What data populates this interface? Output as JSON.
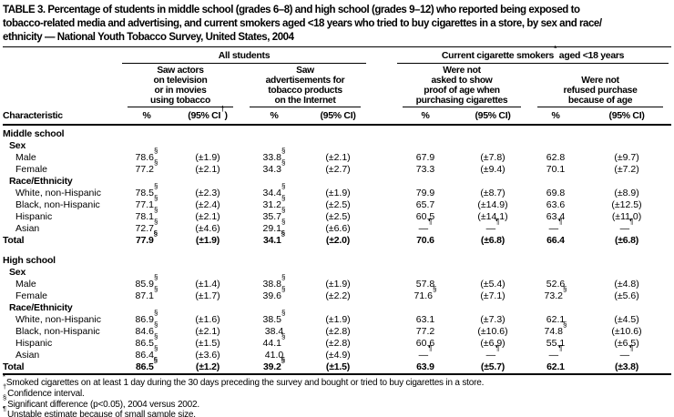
{
  "title_lines": [
    "TABLE 3. Percentage of students in middle school (grades 6–8) and high school (grades 9–12) who reported being exposed to",
    "tobacco-related media and advertising, and current smokers aged <18 years who tried to buy cigarettes in a store, by sex and race/",
    "ethnicity — National Youth Tobacco Survey, United States, 2004"
  ],
  "header": {
    "characteristic": "Characteristic",
    "spanners": [
      {
        "pre": "All students",
        "sup": "",
        "post": ""
      },
      {
        "pre": "Current cigarette smokers",
        "sup": "*",
        "post": " aged <18 years"
      }
    ],
    "subheads": [
      {
        "lines": [
          "Saw actors",
          "on television",
          "or in movies",
          "using tobacco"
        ]
      },
      {
        "lines": [
          "Saw",
          "advertisements for",
          "tobacco products",
          "on the Internet"
        ]
      },
      {
        "lines": [
          "Were not",
          "asked to show",
          "proof of age when",
          "purchasing cigarettes"
        ]
      },
      {
        "lines": [
          "Were not",
          "refused purchase",
          "because of age"
        ]
      }
    ],
    "cols": [
      {
        "pct": "%",
        "ci": "(95% CI",
        "sup": "†",
        "close": ")"
      },
      {
        "pct": "%",
        "ci": "(95% CI)"
      },
      {
        "pct": "%",
        "ci": "(95% CI)"
      },
      {
        "pct": "%",
        "ci": "(95% CI)"
      }
    ]
  },
  "body": {
    "sections": [
      {
        "name": "Middle school",
        "groups": [
          {
            "name": "Sex",
            "rows": [
              {
                "label": "Male",
                "cells": [
                  {
                    "v": "78.6",
                    "s": "§"
                  },
                  {
                    "v": "(±1.9)"
                  },
                  {
                    "v": "33.8",
                    "s": "§"
                  },
                  {
                    "v": "(±2.1)"
                  },
                  {
                    "v": "67.9"
                  },
                  {
                    "v": "(±7.8)"
                  },
                  {
                    "v": "62.8"
                  },
                  {
                    "v": "(±9.7)"
                  }
                ]
              },
              {
                "label": "Female",
                "cells": [
                  {
                    "v": "77.2",
                    "s": "§"
                  },
                  {
                    "v": "(±2.1)"
                  },
                  {
                    "v": "34.3",
                    "s": "§"
                  },
                  {
                    "v": "(±2.7)"
                  },
                  {
                    "v": "73.3"
                  },
                  {
                    "v": "(±9.4)"
                  },
                  {
                    "v": "70.1"
                  },
                  {
                    "v": "(±7.2)"
                  }
                ]
              }
            ]
          },
          {
            "name": "Race/Ethnicity",
            "rows": [
              {
                "label": "White, non-Hispanic",
                "cells": [
                  {
                    "v": "78.5",
                    "s": "§"
                  },
                  {
                    "v": "(±2.3)"
                  },
                  {
                    "v": "34.4",
                    "s": "§"
                  },
                  {
                    "v": "(±1.9)"
                  },
                  {
                    "v": "79.9"
                  },
                  {
                    "v": "(±8.7)"
                  },
                  {
                    "v": "69.8"
                  },
                  {
                    "v": "(±8.9)"
                  }
                ]
              },
              {
                "label": "Black, non-Hispanic",
                "cells": [
                  {
                    "v": "77.1",
                    "s": "§"
                  },
                  {
                    "v": "(±2.4)"
                  },
                  {
                    "v": "31.2",
                    "s": "§"
                  },
                  {
                    "v": "(±2.5)"
                  },
                  {
                    "v": "65.7"
                  },
                  {
                    "v": "(±14.9)"
                  },
                  {
                    "v": "63.6"
                  },
                  {
                    "v": "(±12.5)"
                  }
                ]
              },
              {
                "label": "Hispanic",
                "cells": [
                  {
                    "v": "78.1",
                    "s": "§"
                  },
                  {
                    "v": "(±2.1)"
                  },
                  {
                    "v": "35.7",
                    "s": "§"
                  },
                  {
                    "v": "(±2.5)"
                  },
                  {
                    "v": "60.5"
                  },
                  {
                    "v": "(±14.1)"
                  },
                  {
                    "v": "63.4"
                  },
                  {
                    "v": "(±11.0)"
                  }
                ]
              },
              {
                "label": "Asian",
                "cells": [
                  {
                    "v": "72.7",
                    "s": "§"
                  },
                  {
                    "v": "(±4.6)"
                  },
                  {
                    "v": "29.1",
                    "s": "§"
                  },
                  {
                    "v": "(±6.6)"
                  },
                  {
                    "v": "—",
                    "s": "¶"
                  },
                  {
                    "v": "—",
                    "s": "¶"
                  },
                  {
                    "v": "—",
                    "s": "¶"
                  },
                  {
                    "v": "—",
                    "s": "¶"
                  }
                ]
              }
            ]
          }
        ],
        "total": {
          "label": "Total",
          "cells": [
            {
              "v": "77.9",
              "s": "§"
            },
            {
              "v": "(±1.9)"
            },
            {
              "v": "34.1",
              "s": "§"
            },
            {
              "v": "(±2.0)"
            },
            {
              "v": "70.6"
            },
            {
              "v": "(±6.8)"
            },
            {
              "v": "66.4"
            },
            {
              "v": "(±6.8)"
            }
          ]
        }
      },
      {
        "name": "High school",
        "groups": [
          {
            "name": "Sex",
            "rows": [
              {
                "label": "Male",
                "cells": [
                  {
                    "v": "85.9",
                    "s": "§"
                  },
                  {
                    "v": "(±1.4)"
                  },
                  {
                    "v": "38.8",
                    "s": "§"
                  },
                  {
                    "v": "(±1.9)"
                  },
                  {
                    "v": "57.8"
                  },
                  {
                    "v": "(±5.4)"
                  },
                  {
                    "v": "52.6"
                  },
                  {
                    "v": "(±4.8)"
                  }
                ]
              },
              {
                "label": "Female",
                "cells": [
                  {
                    "v": "87.1",
                    "s": "§"
                  },
                  {
                    "v": "(±1.7)"
                  },
                  {
                    "v": "39.6",
                    "s": "§"
                  },
                  {
                    "v": "(±2.2)"
                  },
                  {
                    "v": "71.6",
                    "s": "§"
                  },
                  {
                    "v": "(±7.1)"
                  },
                  {
                    "v": "73.2",
                    "s": "§"
                  },
                  {
                    "v": "(±5.6)"
                  }
                ]
              }
            ]
          },
          {
            "name": "Race/Ethnicity",
            "rows": [
              {
                "label": "White, non-Hispanic",
                "cells": [
                  {
                    "v": "86.9",
                    "s": "§"
                  },
                  {
                    "v": "(±1.6)"
                  },
                  {
                    "v": "38.5",
                    "s": "§"
                  },
                  {
                    "v": "(±1.9)"
                  },
                  {
                    "v": "63.1"
                  },
                  {
                    "v": "(±7.3)"
                  },
                  {
                    "v": "62.1"
                  },
                  {
                    "v": "(±4.5)"
                  }
                ]
              },
              {
                "label": "Black, non-Hispanic",
                "cells": [
                  {
                    "v": "84.6",
                    "s": "§"
                  },
                  {
                    "v": "(±2.1)"
                  },
                  {
                    "v": "38.4"
                  },
                  {
                    "v": "(±2.8)"
                  },
                  {
                    "v": "77.2"
                  },
                  {
                    "v": "(±10.6)"
                  },
                  {
                    "v": "74.8",
                    "s": "§"
                  },
                  {
                    "v": "(±10.6)"
                  }
                ]
              },
              {
                "label": "Hispanic",
                "cells": [
                  {
                    "v": "86.5",
                    "s": "§"
                  },
                  {
                    "v": "(±1.5)"
                  },
                  {
                    "v": "44.1",
                    "s": "§"
                  },
                  {
                    "v": "(±2.8)"
                  },
                  {
                    "v": "60.6"
                  },
                  {
                    "v": "(±6.9)"
                  },
                  {
                    "v": "55.1"
                  },
                  {
                    "v": "(±6.5)"
                  }
                ]
              },
              {
                "label": "Asian",
                "cells": [
                  {
                    "v": "86.4",
                    "s": "§"
                  },
                  {
                    "v": "(±3.6)"
                  },
                  {
                    "v": "41.0"
                  },
                  {
                    "v": "(±4.9)"
                  },
                  {
                    "v": "—",
                    "s": "¶"
                  },
                  {
                    "v": "—",
                    "s": "¶"
                  },
                  {
                    "v": "—",
                    "s": "¶"
                  },
                  {
                    "v": "—",
                    "s": "¶"
                  }
                ]
              }
            ]
          }
        ],
        "total": {
          "label": "Total",
          "cells": [
            {
              "v": "86.5",
              "s": "§"
            },
            {
              "v": "(±1.2)"
            },
            {
              "v": "39.2",
              "s": "§"
            },
            {
              "v": "(±1.5)"
            },
            {
              "v": "63.9"
            },
            {
              "v": "(±5.7)"
            },
            {
              "v": "62.1"
            },
            {
              "v": "(±3.8)"
            }
          ]
        }
      }
    ]
  },
  "footnotes": [
    {
      "sym": "*",
      "text": "Smoked cigarettes on at least 1 day during the 30 days preceding the survey and bought or tried to buy cigarettes in a store."
    },
    {
      "sym": "†",
      "text": "Confidence interval."
    },
    {
      "sym": "§",
      "text": "Significant difference (p<0.05), 2004 versus 2002."
    },
    {
      "sym": "¶",
      "text": "Unstable estimate because of small sample size."
    }
  ]
}
